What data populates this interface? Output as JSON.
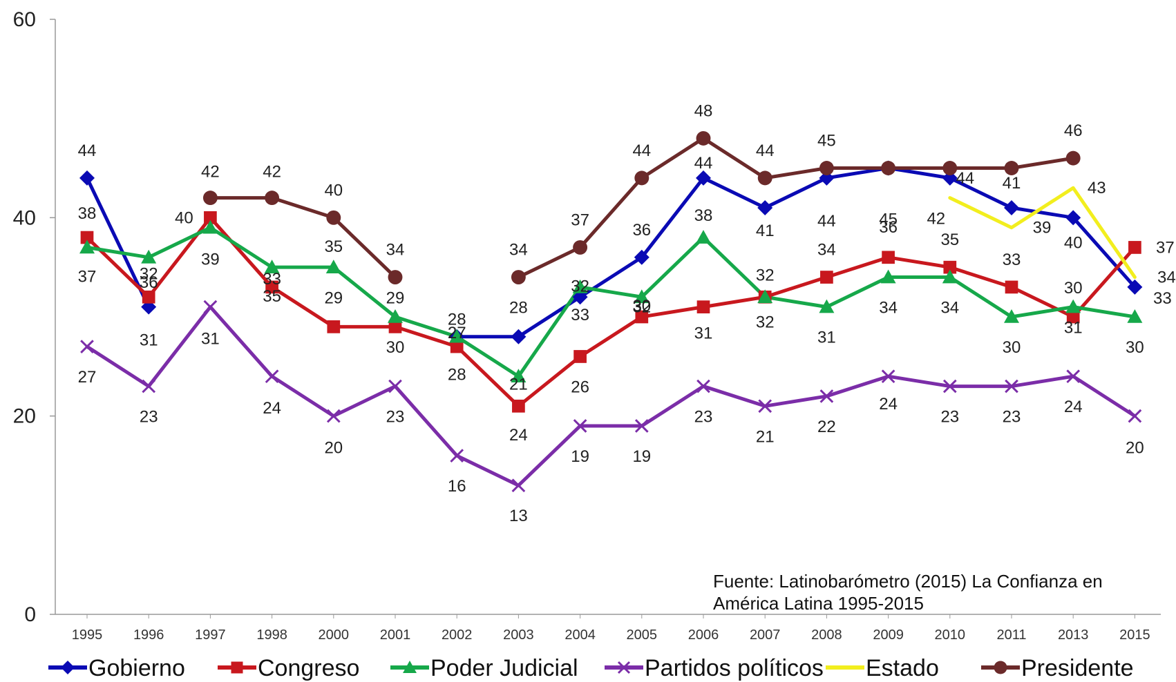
{
  "source_note": "Fuente: Latinobarómetro (2015) La Confianza en América Latina 1995-2015",
  "chart_data": {
    "type": "line",
    "categories": [
      "1995",
      "1996",
      "1997",
      "1998",
      "2000",
      "2001",
      "2002",
      "2003",
      "2004",
      "2005",
      "2006",
      "2007",
      "2008",
      "2009",
      "2010",
      "2011",
      "2013",
      "2015"
    ],
    "ylim": [
      0,
      60
    ],
    "yticks": [
      "0",
      "20",
      "40",
      "60"
    ],
    "grid": false,
    "legend_position": "bottom",
    "series": [
      {
        "name": "Gobierno",
        "color": "#0a0ab4",
        "marker": "diamond",
        "values": [
          44,
          31,
          null,
          null,
          null,
          null,
          28,
          28,
          32,
          36,
          44,
          41,
          44,
          45,
          44,
          41,
          40,
          33
        ]
      },
      {
        "name": "Congreso",
        "color": "#c8181e",
        "marker": "square",
        "values": [
          38,
          32,
          40,
          33,
          29,
          29,
          27,
          21,
          26,
          30,
          31,
          32,
          34,
          36,
          35,
          33,
          30,
          37
        ]
      },
      {
        "name": "Poder Judicial",
        "color": "#16a84a",
        "marker": "triangle",
        "values": [
          37,
          36,
          39,
          35,
          35,
          30,
          28,
          24,
          33,
          32,
          38,
          32,
          31,
          34,
          34,
          30,
          31,
          30
        ]
      },
      {
        "name": "Partidos políticos",
        "color": "#7b2da8",
        "marker": "x",
        "values": [
          27,
          23,
          31,
          24,
          20,
          23,
          16,
          13,
          19,
          19,
          23,
          21,
          22,
          24,
          23,
          23,
          24,
          20
        ]
      },
      {
        "name": "Estado",
        "color": "#f2ee1e",
        "marker": "none",
        "values": [
          null,
          null,
          null,
          null,
          null,
          null,
          null,
          null,
          null,
          null,
          null,
          null,
          null,
          null,
          42,
          39,
          43,
          34
        ]
      },
      {
        "name": "Presidente",
        "color": "#6b2a2a",
        "marker": "circle",
        "values": [
          null,
          null,
          42,
          42,
          40,
          34,
          null,
          34,
          37,
          44,
          48,
          44,
          45,
          45,
          45,
          45,
          46,
          null
        ]
      }
    ],
    "data_labels": [
      {
        "i": 0,
        "text": "44",
        "dx": 0,
        "dy": -40
      },
      {
        "i": 0,
        "text": "38",
        "dx": 0,
        "dy": -35
      },
      {
        "i": 0,
        "text": "37",
        "dx": 0,
        "dy": 42
      },
      {
        "i": 0,
        "text": "27",
        "dx": 0,
        "dy": 44
      },
      {
        "i": 1,
        "text": "32",
        "dx": 0,
        "dy": -34
      },
      {
        "i": 1,
        "text": "36",
        "dx": 0,
        "dy": 36
      },
      {
        "i": 1,
        "text": "31",
        "dx": 0,
        "dy": 48
      },
      {
        "i": 1,
        "text": "23",
        "dx": 0,
        "dy": 44
      },
      {
        "i": 2,
        "text": "42",
        "dx": 0,
        "dy": -38
      },
      {
        "i": 2,
        "text": "40",
        "dx": -38,
        "dy": 0
      },
      {
        "i": 2,
        "text": "39",
        "dx": 0,
        "dy": 46
      },
      {
        "i": 2,
        "text": "31",
        "dx": 0,
        "dy": 46
      },
      {
        "i": 3,
        "text": "42",
        "dx": 0,
        "dy": -38
      },
      {
        "i": 3,
        "text": "33",
        "dx": 0,
        "dy": -12
      },
      {
        "i": 3,
        "text": "35",
        "dx": 0,
        "dy": 42
      },
      {
        "i": 3,
        "text": "24",
        "dx": 0,
        "dy": 46
      },
      {
        "i": 4,
        "text": "40",
        "dx": 0,
        "dy": -40
      },
      {
        "i": 4,
        "text": "35",
        "dx": 0,
        "dy": -30
      },
      {
        "i": 4,
        "text": "29",
        "dx": 0,
        "dy": -42
      },
      {
        "i": 4,
        "text": "20",
        "dx": 0,
        "dy": 46
      },
      {
        "i": 5,
        "text": "34",
        "dx": 0,
        "dy": -40
      },
      {
        "i": 5,
        "text": "29",
        "dx": 0,
        "dy": -42
      },
      {
        "i": 5,
        "text": "30",
        "dx": 0,
        "dy": 44
      },
      {
        "i": 5,
        "text": "23",
        "dx": 0,
        "dy": 44
      },
      {
        "i": 6,
        "text": "28",
        "dx": 0,
        "dy": -25
      },
      {
        "i": 6,
        "text": "27",
        "dx": 0,
        "dy": -20
      },
      {
        "i": 6,
        "text": "28",
        "dx": 0,
        "dy": 55
      },
      {
        "i": 6,
        "text": "16",
        "dx": 0,
        "dy": 44
      },
      {
        "i": 7,
        "text": "34",
        "dx": 0,
        "dy": -40
      },
      {
        "i": 7,
        "text": "28",
        "dx": 0,
        "dy": -42
      },
      {
        "i": 7,
        "text": "21",
        "dx": 0,
        "dy": -32
      },
      {
        "i": 7,
        "text": "24",
        "dx": 0,
        "dy": 85
      },
      {
        "i": 7,
        "text": "13",
        "dx": 0,
        "dy": 44
      },
      {
        "i": 8,
        "text": "37",
        "dx": 0,
        "dy": -40
      },
      {
        "i": 8,
        "text": "32",
        "dx": 0,
        "dy": -16
      },
      {
        "i": 8,
        "text": "33",
        "dx": 0,
        "dy": 40
      },
      {
        "i": 8,
        "text": "26",
        "dx": 0,
        "dy": 44
      },
      {
        "i": 8,
        "text": "19",
        "dx": 0,
        "dy": 44
      },
      {
        "i": 9,
        "text": "44",
        "dx": 0,
        "dy": -40
      },
      {
        "i": 9,
        "text": "36",
        "dx": 0,
        "dy": -40
      },
      {
        "i": 9,
        "text": "30",
        "dx": 0,
        "dy": -16
      },
      {
        "i": 9,
        "text": "32",
        "dx": 0,
        "dy": 14
      },
      {
        "i": 9,
        "text": "19",
        "dx": 0,
        "dy": 44
      },
      {
        "i": 10,
        "text": "48",
        "dx": 0,
        "dy": -40
      },
      {
        "i": 10,
        "text": "44",
        "dx": 0,
        "dy": -22
      },
      {
        "i": 10,
        "text": "38",
        "dx": 0,
        "dy": -32
      },
      {
        "i": 10,
        "text": "31",
        "dx": 0,
        "dy": 38
      },
      {
        "i": 10,
        "text": "23",
        "dx": 0,
        "dy": 44
      },
      {
        "i": 11,
        "text": "44",
        "dx": 0,
        "dy": -40
      },
      {
        "i": 11,
        "text": "41",
        "dx": 0,
        "dy": 33
      },
      {
        "i": 11,
        "text": "32",
        "dx": 0,
        "dy": -32
      },
      {
        "i": 11,
        "text": "32",
        "dx": 0,
        "dy": 36
      },
      {
        "i": 11,
        "text": "21",
        "dx": 0,
        "dy": 44
      },
      {
        "i": 12,
        "text": "45",
        "dx": 0,
        "dy": -40
      },
      {
        "i": 12,
        "text": "44",
        "dx": 0,
        "dy": 62
      },
      {
        "i": 12,
        "text": "34",
        "dx": 0,
        "dy": -40
      },
      {
        "i": 12,
        "text": "31",
        "dx": 0,
        "dy": 44
      },
      {
        "i": 12,
        "text": "22",
        "dx": 0,
        "dy": 44
      },
      {
        "i": 13,
        "text": "45",
        "dx": 0,
        "dy": 74
      },
      {
        "i": 13,
        "text": "36",
        "dx": 0,
        "dy": -44
      },
      {
        "i": 13,
        "text": "34",
        "dx": 0,
        "dy": 44
      },
      {
        "i": 13,
        "text": "24",
        "dx": 0,
        "dy": 40
      },
      {
        "i": 14,
        "text": "42",
        "dx": -20,
        "dy": 30
      },
      {
        "i": 14,
        "text": "44",
        "dx": 22,
        "dy": 0
      },
      {
        "i": 14,
        "text": "35",
        "dx": 0,
        "dy": -40
      },
      {
        "i": 14,
        "text": "34",
        "dx": 0,
        "dy": 44
      },
      {
        "i": 14,
        "text": "23",
        "dx": 0,
        "dy": 44
      },
      {
        "i": 15,
        "text": "41",
        "dx": 0,
        "dy": -36
      },
      {
        "i": 15,
        "text": "39",
        "dx": 44,
        "dy": 0
      },
      {
        "i": 15,
        "text": "33",
        "dx": 0,
        "dy": -40
      },
      {
        "i": 15,
        "text": "30",
        "dx": 0,
        "dy": 44
      },
      {
        "i": 15,
        "text": "23",
        "dx": 0,
        "dy": 44
      },
      {
        "i": 16,
        "text": "46",
        "dx": 0,
        "dy": -40
      },
      {
        "i": 16,
        "text": "43",
        "dx": 34,
        "dy": 0
      },
      {
        "i": 16,
        "text": "40",
        "dx": 0,
        "dy": 36
      },
      {
        "i": 16,
        "text": "30",
        "dx": 0,
        "dy": -42
      },
      {
        "i": 16,
        "text": "31",
        "dx": 0,
        "dy": 30
      },
      {
        "i": 16,
        "text": "24",
        "dx": 0,
        "dy": 44
      },
      {
        "i": 17,
        "text": "37",
        "dx": 44,
        "dy": 0
      },
      {
        "i": 17,
        "text": "34",
        "dx": 46,
        "dy": 0
      },
      {
        "i": 17,
        "text": "33",
        "dx": 40,
        "dy": 16
      },
      {
        "i": 17,
        "text": "30",
        "dx": 0,
        "dy": 44
      },
      {
        "i": 17,
        "text": "20",
        "dx": 0,
        "dy": 46
      }
    ]
  }
}
